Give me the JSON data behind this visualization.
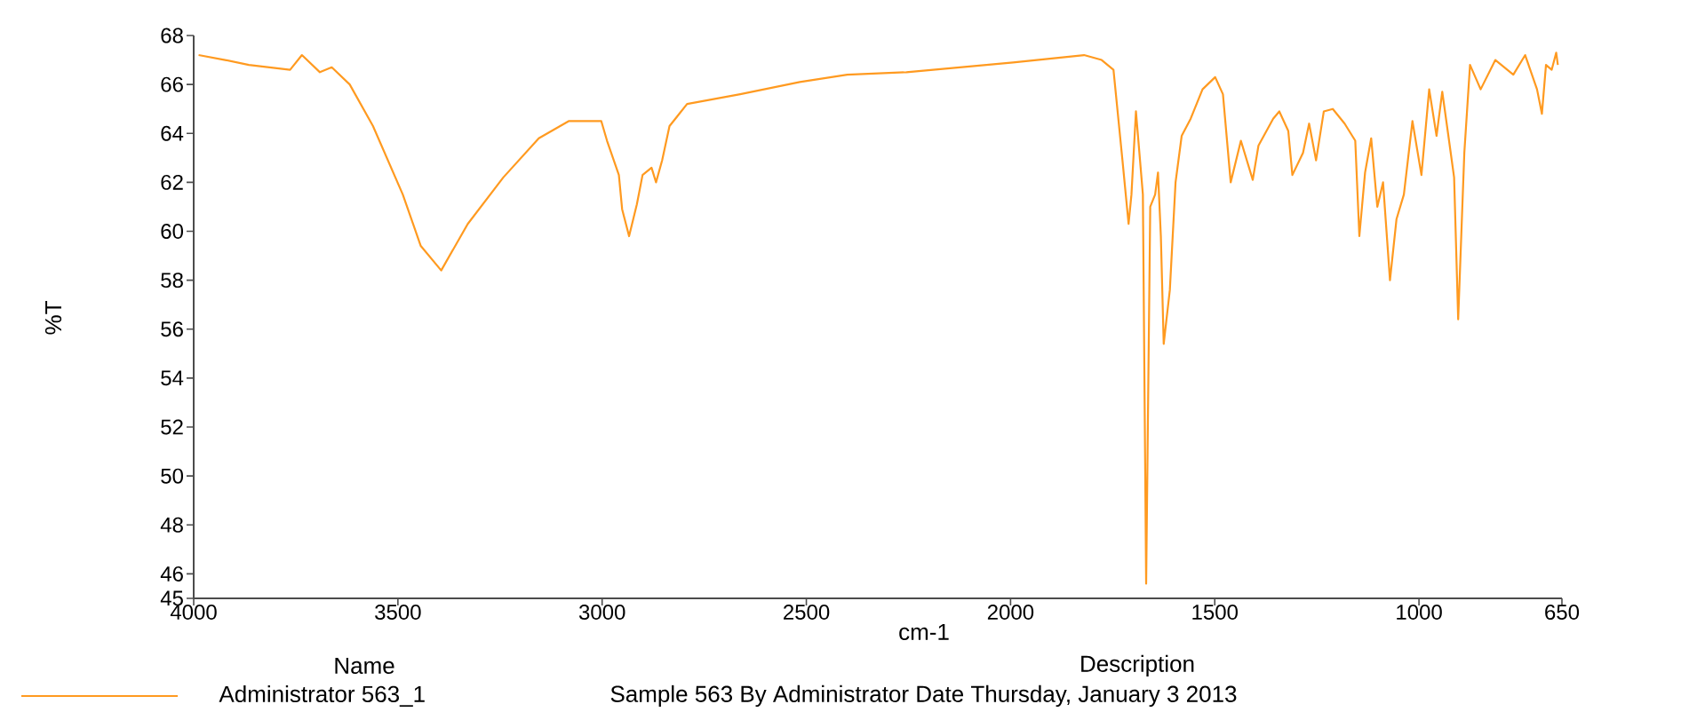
{
  "chart_data": {
    "type": "line",
    "xlabel": "cm-1",
    "ylabel": "%T",
    "xlim": [
      4000,
      650
    ],
    "xticks": [
      4000,
      3500,
      3000,
      2500,
      2000,
      1500,
      1000,
      650
    ],
    "ylim": [
      45,
      68
    ],
    "yticks": [
      45,
      46,
      48,
      50,
      52,
      54,
      56,
      58,
      60,
      62,
      64,
      66,
      68
    ],
    "legend": "bottom",
    "grid": false,
    "marker": "none",
    "line_style": "solid",
    "annotations": [
      "Name",
      "Description",
      "Sample 563 By Administrator Date Thursday, January 3  2013"
    ],
    "series": [
      {
        "name": "Administrator 563_1",
        "color": "#ff9a20",
        "x": [
          3988,
          3923,
          3865,
          3764,
          3735,
          3691,
          3662,
          3618,
          3561,
          3488,
          3444,
          3394,
          3329,
          3242,
          3155,
          3082,
          3002,
          2988,
          2959,
          2951,
          2934,
          2915,
          2901,
          2879,
          2868,
          2853,
          2835,
          2792,
          2662,
          2516,
          2400,
          2255,
          1994,
          1820,
          1777,
          1748,
          1726,
          1711,
          1704,
          1693,
          1683,
          1676,
          1668,
          1658,
          1646,
          1639,
          1632,
          1625,
          1610,
          1596,
          1581,
          1559,
          1530,
          1499,
          1480,
          1461,
          1436,
          1407,
          1393,
          1357,
          1342,
          1320,
          1310,
          1284,
          1269,
          1252,
          1233,
          1211,
          1182,
          1156,
          1146,
          1132,
          1117,
          1102,
          1088,
          1071,
          1055,
          1037,
          1016,
          994,
          975,
          957,
          943,
          928,
          914,
          904,
          889,
          875,
          849,
          813,
          769,
          740,
          711,
          699,
          689,
          675,
          664,
          660
        ],
        "values": [
          67.2,
          67.0,
          66.8,
          66.6,
          67.2,
          66.5,
          66.7,
          66.0,
          64.3,
          61.5,
          59.4,
          58.4,
          60.3,
          62.2,
          63.8,
          64.5,
          64.5,
          63.7,
          62.3,
          60.9,
          59.8,
          61.1,
          62.3,
          62.6,
          62.0,
          62.9,
          64.3,
          65.2,
          65.6,
          66.1,
          66.4,
          66.5,
          66.9,
          67.2,
          67.0,
          66.6,
          62.9,
          60.3,
          61.5,
          64.9,
          62.9,
          61.5,
          45.6,
          61.0,
          61.5,
          62.4,
          59.8,
          55.4,
          57.6,
          62.0,
          63.9,
          64.6,
          65.8,
          66.3,
          65.6,
          62.0,
          63.7,
          62.1,
          63.5,
          64.6,
          64.9,
          64.1,
          62.3,
          63.2,
          64.4,
          62.9,
          64.9,
          65.0,
          64.4,
          63.7,
          59.8,
          62.4,
          63.8,
          61.0,
          62.0,
          58.0,
          60.5,
          61.5,
          64.5,
          62.3,
          65.8,
          63.9,
          65.7,
          63.9,
          62.2,
          56.4,
          63.2,
          66.8,
          65.8,
          67.0,
          66.4,
          67.2,
          65.8,
          64.8,
          66.8,
          66.6,
          67.3,
          66.8
        ]
      }
    ]
  }
}
